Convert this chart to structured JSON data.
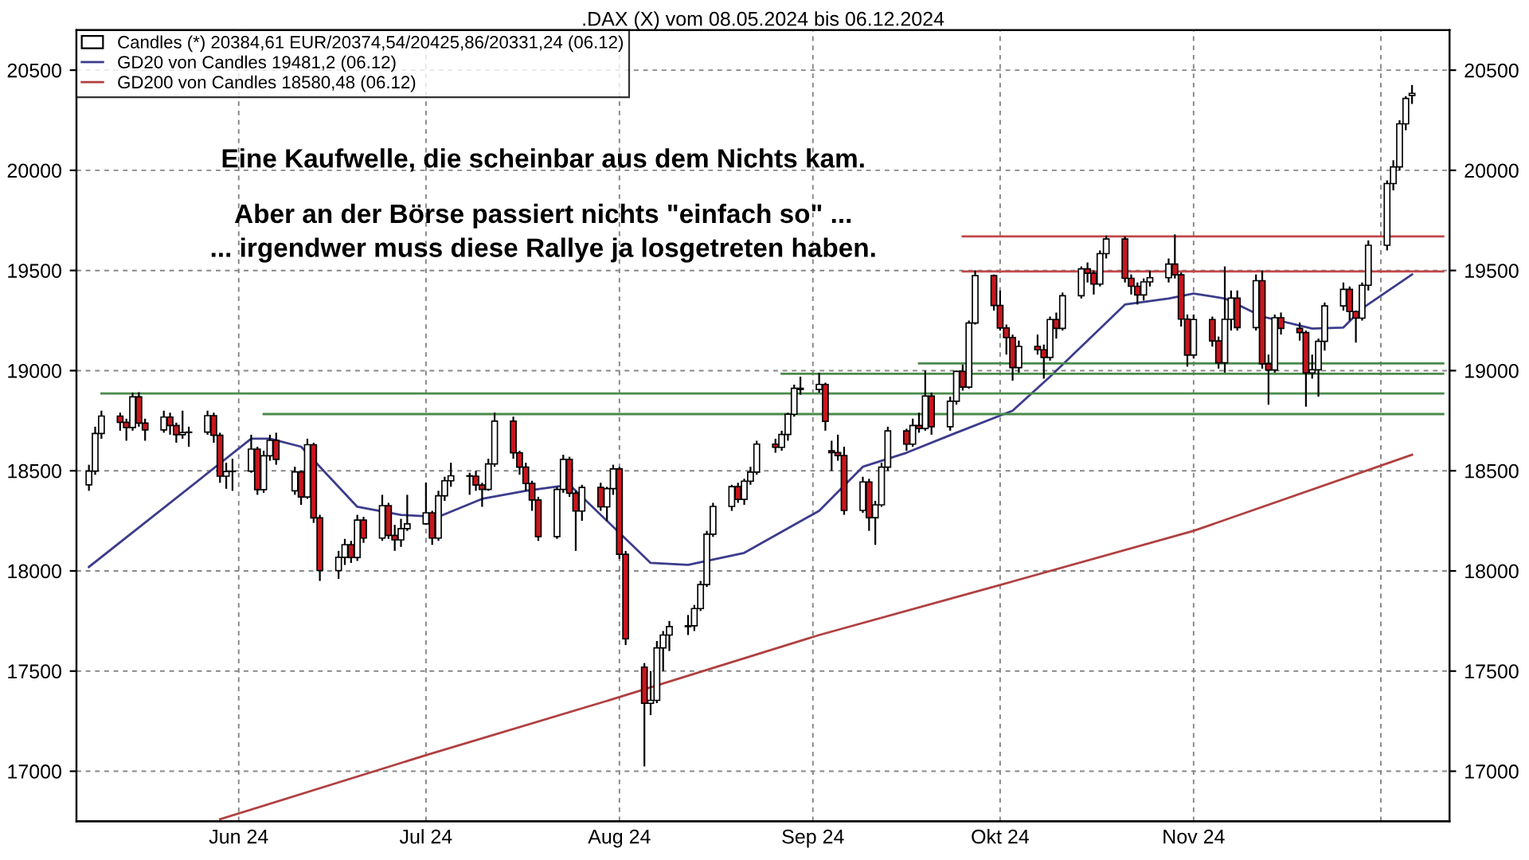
{
  "chart_data": {
    "type": "candlestick",
    "title": ".DAX (X) vom 08.05.2024 bis 06.12.2024",
    "annotations": [
      "Eine Kaufwelle, die scheinbar aus dem Nichts kam.",
      "Aber an der Börse passiert nichts \"einfach so\" ...",
      "... irgendwer muss diese Rallye ja losgetreten haben."
    ],
    "xlim": [
      "2024-05-06",
      "2024-12-12"
    ],
    "xticks": [
      {
        "value": "2024-06-01",
        "label": "Jun 24"
      },
      {
        "value": "2024-07-01",
        "label": "Jul 24"
      },
      {
        "value": "2024-08-01",
        "label": "Aug 24"
      },
      {
        "value": "2024-09-01",
        "label": "Sep 24"
      },
      {
        "value": "2024-10-01",
        "label": "Okt 24"
      },
      {
        "value": "2024-11-01",
        "label": "Nov 24"
      },
      {
        "value": "2024-12-01",
        "label": null
      }
    ],
    "ylim": [
      16750,
      20700
    ],
    "yticks": [
      17000,
      17500,
      18000,
      18500,
      19000,
      19500,
      20000,
      20500
    ],
    "y2lim": [
      16750,
      20700
    ],
    "y2ticks": [
      17000,
      17500,
      18000,
      18500,
      19000,
      19500,
      20000,
      20500
    ],
    "grid": true,
    "legend": "top left",
    "series": [
      {
        "name": "Candles (*) 20384,61 EUR/20374,54/20425,86/20331,24 (06.12)",
        "colors": [
          "#ffffff",
          "#ffffff",
          "#ffffff",
          "#c8161d",
          "#c8161d",
          "#ffffff",
          "#c8161d",
          "#c8161d",
          "#ffffff",
          "#c8161d",
          "#c8161d",
          "#ffffff",
          "#ffffff",
          "#ffffff",
          "#c8161d",
          "#c8161d",
          "#ffffff",
          "#ffffff",
          "#ffffff",
          "#c8161d",
          "#ffffff",
          "#ffffff",
          "#c8161d",
          "#ffffff",
          "#c8161d",
          "#ffffff",
          "#c8161d",
          "#c8161d",
          "#ffffff",
          "#ffffff",
          "#c8161d",
          "#ffffff",
          "#c8161d",
          "#ffffff",
          "#c8161d",
          "#c8161d",
          "#ffffff",
          "#ffffff",
          "#ffffff",
          "#c8161d",
          "#ffffff",
          "#ffffff",
          "#ffffff",
          "#c8161d",
          "#c8161d",
          "#c8161d",
          "#ffffff",
          "#ffffff",
          "#c8161d",
          "#c8161d",
          "#c8161d",
          "#c8161d",
          "#c8161d",
          "#ffffff",
          "#ffffff",
          "#c8161d",
          "#c8161d",
          "#ffffff",
          "#c8161d",
          "#ffffff",
          "#ffffff",
          "#c8161d",
          "#c8161d",
          "#c8161d",
          "#ffffff",
          "#ffffff",
          "#ffffff",
          "#ffffff",
          "#ffffff",
          "#ffffff",
          "#ffffff",
          "#ffffff",
          "#ffffff",
          "#ffffff",
          "#c8161d",
          "#ffffff",
          "#ffffff",
          "#ffffff",
          "#c8161d",
          "#ffffff",
          "#ffffff",
          "#ffffff",
          "#c8161d",
          "#ffffff",
          "#c8161d",
          "#c8161d",
          "#c8161d",
          "#c8161d",
          "#ffffff",
          "#c8161d",
          "#ffffff",
          "#ffffff",
          "#ffffff",
          "#c8161d",
          "#ffffff",
          "#c8161d",
          "#ffffff",
          "#c8161d",
          "#ffffff",
          "#ffffff",
          "#c8161d",
          "#ffffff",
          "#ffffff",
          "#c8161d",
          "#c8161d",
          "#c8161d",
          "#c8161d",
          "#ffffff",
          "#c8161d",
          "#c8161d",
          "#ffffff",
          "#c8161d",
          "#ffffff",
          "#ffffff",
          "#c8161d",
          "#c8161d",
          "#ffffff",
          "#ffffff",
          "#c8161d",
          "#c8161d",
          "#c8161d",
          "#ffffff",
          "#ffffff",
          "#ffffff",
          "#c8161d",
          "#c8161d",
          "#c8161d",
          "#ffffff",
          "#c8161d",
          "#c8161d",
          "#ffffff",
          "#ffffff",
          "#c8161d",
          "#ffffff",
          "#c8161d",
          "#c8161d",
          "#ffffff",
          "#c8161d",
          "#c8161d",
          "#c8161d",
          "#ffffff",
          "#ffffff",
          "#ffffff",
          "#ffffff",
          "#c8161d",
          "#c8161d",
          "#ffffff",
          "#ffffff",
          "#ffffff",
          "#ffffff",
          "#ffffff",
          "#ffffff",
          "#ffffff"
        ],
        "x": [
          "2024-05-08",
          "2024-05-09",
          "2024-05-10",
          "2024-05-13",
          "2024-05-14",
          "2024-05-15",
          "2024-05-16",
          "2024-05-17",
          "2024-05-20",
          "2024-05-21",
          "2024-05-22",
          "2024-05-23",
          "2024-05-24",
          "2024-05-27",
          "2024-05-28",
          "2024-05-29",
          "2024-05-30",
          "2024-05-31",
          "2024-06-03",
          "2024-06-04",
          "2024-06-05",
          "2024-06-06",
          "2024-06-07",
          "2024-06-10",
          "2024-06-11",
          "2024-06-12",
          "2024-06-13",
          "2024-06-14",
          "2024-06-17",
          "2024-06-18",
          "2024-06-19",
          "2024-06-20",
          "2024-06-21",
          "2024-06-24",
          "2024-06-25",
          "2024-06-26",
          "2024-06-27",
          "2024-06-28",
          "2024-07-01",
          "2024-07-02",
          "2024-07-03",
          "2024-07-04",
          "2024-07-05",
          "2024-07-08",
          "2024-07-09",
          "2024-07-10",
          "2024-07-11",
          "2024-07-12",
          "2024-07-15",
          "2024-07-16",
          "2024-07-17",
          "2024-07-18",
          "2024-07-19",
          "2024-07-22",
          "2024-07-23",
          "2024-07-24",
          "2024-07-25",
          "2024-07-26",
          "2024-07-29",
          "2024-07-30",
          "2024-07-31",
          "2024-08-01",
          "2024-08-02",
          "2024-08-05",
          "2024-08-06",
          "2024-08-07",
          "2024-08-08",
          "2024-08-09",
          "2024-08-12",
          "2024-08-13",
          "2024-08-14",
          "2024-08-15",
          "2024-08-16",
          "2024-08-19",
          "2024-08-20",
          "2024-08-21",
          "2024-08-22",
          "2024-08-23",
          "2024-08-26",
          "2024-08-27",
          "2024-08-28",
          "2024-08-29",
          "2024-08-30",
          "2024-09-02",
          "2024-09-03",
          "2024-09-04",
          "2024-09-05",
          "2024-09-06",
          "2024-09-09",
          "2024-09-10",
          "2024-09-11",
          "2024-09-12",
          "2024-09-13",
          "2024-09-16",
          "2024-09-17",
          "2024-09-18",
          "2024-09-19",
          "2024-09-20",
          "2024-09-23",
          "2024-09-24",
          "2024-09-25",
          "2024-09-26",
          "2024-09-27",
          "2024-09-30",
          "2024-10-01",
          "2024-10-02",
          "2024-10-03",
          "2024-10-04",
          "2024-10-07",
          "2024-10-08",
          "2024-10-09",
          "2024-10-10",
          "2024-10-11",
          "2024-10-14",
          "2024-10-15",
          "2024-10-16",
          "2024-10-17",
          "2024-10-18",
          "2024-10-21",
          "2024-10-22",
          "2024-10-23",
          "2024-10-24",
          "2024-10-25",
          "2024-10-28",
          "2024-10-29",
          "2024-10-30",
          "2024-10-31",
          "2024-11-01",
          "2024-11-04",
          "2024-11-05",
          "2024-11-06",
          "2024-11-07",
          "2024-11-08",
          "2024-11-11",
          "2024-11-12",
          "2024-11-13",
          "2024-11-14",
          "2024-11-15",
          "2024-11-18",
          "2024-11-19",
          "2024-11-20",
          "2024-11-21",
          "2024-11-22",
          "2024-11-25",
          "2024-11-26",
          "2024-11-27",
          "2024-11-28",
          "2024-11-29",
          "2024-12-02",
          "2024-12-03",
          "2024-12-04",
          "2024-12-05",
          "2024-12-06"
        ],
        "ohlc": [
          [
            18430,
            18530,
            18400,
            18498
          ],
          [
            18498,
            18720,
            18480,
            18686
          ],
          [
            18686,
            18800,
            18660,
            18773
          ],
          [
            18773,
            18790,
            18700,
            18742
          ],
          [
            18742,
            18760,
            18650,
            18716
          ],
          [
            18716,
            18890,
            18700,
            18869
          ],
          [
            18869,
            18892,
            18720,
            18738
          ],
          [
            18738,
            18760,
            18650,
            18704
          ],
          [
            18704,
            18800,
            18690,
            18768
          ],
          [
            18768,
            18790,
            18680,
            18726
          ],
          [
            18726,
            18740,
            18640,
            18680
          ],
          [
            18680,
            18800,
            18660,
            18691
          ],
          [
            18691,
            18720,
            18620,
            18693
          ],
          [
            18693,
            18800,
            18680,
            18775
          ],
          [
            18775,
            18790,
            18640,
            18677
          ],
          [
            18677,
            18690,
            18440,
            18473
          ],
          [
            18473,
            18540,
            18410,
            18496
          ],
          [
            18496,
            18560,
            18400,
            18498
          ],
          [
            18498,
            18680,
            18490,
            18608
          ],
          [
            18608,
            18620,
            18380,
            18406
          ],
          [
            18406,
            18600,
            18390,
            18575
          ],
          [
            18575,
            18680,
            18550,
            18652
          ],
          [
            18652,
            18690,
            18530,
            18557
          ],
          [
            18400,
            18520,
            18380,
            18494
          ],
          [
            18494,
            18500,
            18330,
            18369
          ],
          [
            18369,
            18660,
            18360,
            18630
          ],
          [
            18630,
            18640,
            18240,
            18265
          ],
          [
            18265,
            18280,
            17950,
            18002
          ],
          [
            18002,
            18100,
            17960,
            18068
          ],
          [
            18068,
            18160,
            18030,
            18131
          ],
          [
            18131,
            18150,
            18040,
            18067
          ],
          [
            18067,
            18280,
            18050,
            18254
          ],
          [
            18254,
            18270,
            18140,
            18164
          ],
          [
            18164,
            18380,
            18150,
            18326
          ],
          [
            18326,
            18340,
            18160,
            18177
          ],
          [
            18177,
            18230,
            18100,
            18155
          ],
          [
            18155,
            18260,
            18120,
            18211
          ],
          [
            18211,
            18380,
            18200,
            18235
          ],
          [
            18235,
            18440,
            18230,
            18290
          ],
          [
            18290,
            18300,
            18130,
            18164
          ],
          [
            18164,
            18400,
            18150,
            18375
          ],
          [
            18375,
            18470,
            18350,
            18450
          ],
          [
            18450,
            18540,
            18420,
            18475
          ],
          [
            18475,
            18490,
            18380,
            18473
          ],
          [
            18473,
            18500,
            18400,
            18429
          ],
          [
            18429,
            18440,
            18320,
            18407
          ],
          [
            18407,
            18560,
            18400,
            18534
          ],
          [
            18534,
            18790,
            18520,
            18748
          ],
          [
            18748,
            18770,
            18560,
            18590
          ],
          [
            18590,
            18600,
            18480,
            18518
          ],
          [
            18518,
            18540,
            18400,
            18437
          ],
          [
            18437,
            18450,
            18300,
            18354
          ],
          [
            18354,
            18370,
            18150,
            18171
          ],
          [
            18171,
            18420,
            18160,
            18407
          ],
          [
            18407,
            18580,
            18390,
            18557
          ],
          [
            18557,
            18570,
            18370,
            18388
          ],
          [
            18388,
            18400,
            18100,
            18299
          ],
          [
            18299,
            18430,
            18250,
            18417
          ],
          [
            18417,
            18440,
            18300,
            18320
          ],
          [
            18320,
            18420,
            18250,
            18411
          ],
          [
            18411,
            18530,
            18380,
            18509
          ],
          [
            18509,
            18520,
            18060,
            18083
          ],
          [
            18083,
            18100,
            17630,
            17661
          ],
          [
            17520,
            17540,
            17024,
            17339
          ],
          [
            17339,
            17500,
            17280,
            17354
          ],
          [
            17354,
            17650,
            17340,
            17616
          ],
          [
            17616,
            17700,
            17500,
            17680
          ],
          [
            17680,
            17750,
            17600,
            17722
          ],
          [
            17722,
            17780,
            17680,
            17726
          ],
          [
            17726,
            17830,
            17700,
            17812
          ],
          [
            17812,
            17950,
            17800,
            17932
          ],
          [
            17932,
            18200,
            17920,
            18183
          ],
          [
            18183,
            18340,
            18170,
            18322
          ],
          [
            18322,
            18430,
            18300,
            18421
          ],
          [
            18421,
            18440,
            18340,
            18357
          ],
          [
            18357,
            18460,
            18330,
            18448
          ],
          [
            18448,
            18520,
            18430,
            18493
          ],
          [
            18493,
            18650,
            18480,
            18633
          ],
          [
            18633,
            18660,
            18590,
            18617
          ],
          [
            18617,
            18700,
            18600,
            18681
          ],
          [
            18681,
            18790,
            18650,
            18782
          ],
          [
            18782,
            18930,
            18770,
            18912
          ],
          [
            18912,
            18970,
            18880,
            18906
          ],
          [
            18906,
            18990,
            18890,
            18931
          ],
          [
            18931,
            18940,
            18700,
            18747
          ],
          [
            18600,
            18650,
            18500,
            18591
          ],
          [
            18591,
            18680,
            18550,
            18576
          ],
          [
            18576,
            18620,
            18280,
            18302
          ],
          [
            18302,
            18470,
            18290,
            18444
          ],
          [
            18444,
            18460,
            18200,
            18266
          ],
          [
            18266,
            18350,
            18130,
            18330
          ],
          [
            18330,
            18540,
            18320,
            18518
          ],
          [
            18518,
            18720,
            18500,
            18699
          ],
          [
            18699,
            18710,
            18600,
            18633
          ],
          [
            18633,
            18760,
            18620,
            18726
          ],
          [
            18726,
            18790,
            18690,
            18711
          ],
          [
            18711,
            19000,
            18700,
            18873
          ],
          [
            18873,
            18890,
            18680,
            18720
          ],
          [
            18720,
            18870,
            18700,
            18847
          ],
          [
            18847,
            19000,
            18830,
            18996
          ],
          [
            18996,
            19030,
            18900,
            18918
          ],
          [
            18918,
            19250,
            18910,
            19238
          ],
          [
            19238,
            19500,
            19230,
            19474
          ],
          [
            19474,
            19480,
            19300,
            19325
          ],
          [
            19325,
            19400,
            19200,
            19213
          ],
          [
            19213,
            19230,
            19080,
            19165
          ],
          [
            19165,
            19180,
            18950,
            19015
          ],
          [
            19015,
            19150,
            18990,
            19121
          ],
          [
            19121,
            19180,
            19080,
            19104
          ],
          [
            19104,
            19130,
            18960,
            19066
          ],
          [
            19066,
            19270,
            19050,
            19255
          ],
          [
            19255,
            19290,
            19160,
            19211
          ],
          [
            19211,
            19390,
            19200,
            19374
          ],
          [
            19374,
            19520,
            19360,
            19508
          ],
          [
            19508,
            19540,
            19440,
            19486
          ],
          [
            19486,
            19500,
            19380,
            19432
          ],
          [
            19432,
            19600,
            19420,
            19584
          ],
          [
            19584,
            19674,
            19560,
            19657
          ],
          [
            19657,
            19670,
            19440,
            19461
          ],
          [
            19461,
            19480,
            19380,
            19421
          ],
          [
            19421,
            19440,
            19330,
            19378
          ],
          [
            19378,
            19460,
            19350,
            19443
          ],
          [
            19443,
            19500,
            19420,
            19464
          ],
          [
            19464,
            19560,
            19440,
            19532
          ],
          [
            19532,
            19680,
            19460,
            19478
          ],
          [
            19478,
            19490,
            19220,
            19257
          ],
          [
            19257,
            19280,
            19020,
            19078
          ],
          [
            19078,
            19280,
            19060,
            19255
          ],
          [
            19255,
            19270,
            19120,
            19148
          ],
          [
            19148,
            19170,
            19010,
            19039
          ],
          [
            19039,
            19520,
            18990,
            19256
          ],
          [
            19256,
            19400,
            19200,
            19362
          ],
          [
            19362,
            19400,
            19200,
            19215
          ],
          [
            19215,
            19480,
            19200,
            19449
          ],
          [
            19449,
            19500,
            19010,
            19034
          ],
          [
            19034,
            19080,
            18830,
            19003
          ],
          [
            19003,
            19280,
            18990,
            19264
          ],
          [
            19264,
            19290,
            19180,
            19211
          ],
          [
            19211,
            19240,
            19150,
            19190
          ],
          [
            19190,
            19200,
            18820,
            18988
          ],
          [
            18988,
            19080,
            18960,
            19004
          ],
          [
            19004,
            19160,
            18870,
            19146
          ],
          [
            19146,
            19340,
            19100,
            19323
          ],
          [
            19323,
            19440,
            19300,
            19406
          ],
          [
            19406,
            19420,
            19250,
            19295
          ],
          [
            19295,
            19300,
            19140,
            19262
          ],
          [
            19262,
            19440,
            19250,
            19426
          ],
          [
            19426,
            19650,
            19400,
            19626
          ],
          [
            19626,
            19950,
            19600,
            19934
          ],
          [
            19934,
            20050,
            19900,
            20017
          ],
          [
            20017,
            20250,
            20000,
            20232
          ],
          [
            20232,
            20370,
            20200,
            20359
          ],
          [
            20374,
            20426,
            20331,
            20384
          ]
        ]
      },
      {
        "name": "GD20 von Candles 19481,2 (06.12)",
        "type": "line",
        "color": "#3c3c8c",
        "x": [
          "2024-05-08",
          "2024-06-03",
          "2024-06-06",
          "2024-06-11",
          "2024-06-20",
          "2024-06-27",
          "2024-07-03",
          "2024-07-10",
          "2024-07-17",
          "2024-07-24",
          "2024-08-06",
          "2024-08-12",
          "2024-08-21",
          "2024-09-02",
          "2024-09-09",
          "2024-09-16",
          "2024-09-24",
          "2024-10-03",
          "2024-10-09",
          "2024-10-16",
          "2024-10-21",
          "2024-10-28",
          "2024-11-01",
          "2024-11-06",
          "2024-11-12",
          "2024-11-20",
          "2024-11-25",
          "2024-11-28",
          "2024-12-06"
        ],
        "values": [
          18020,
          18660,
          18660,
          18620,
          18320,
          18280,
          18270,
          18360,
          18400,
          18430,
          18040,
          18030,
          18090,
          18300,
          18520,
          18590,
          18690,
          18800,
          18970,
          19180,
          19330,
          19360,
          19385,
          19360,
          19270,
          19210,
          19215,
          19310,
          19480
        ]
      },
      {
        "name": "GD200 von Candles 18580,48 (06.12)",
        "type": "line",
        "color": "#b04040",
        "x": [
          "2024-05-29",
          "2024-07-01",
          "2024-08-01",
          "2024-09-02",
          "2024-10-01",
          "2024-11-01",
          "2024-12-06"
        ],
        "values": [
          16760,
          17080,
          17370,
          17680,
          17930,
          18200,
          18580
        ]
      },
      {
        "type": "line",
        "color": "#c04848",
        "x": [
          "2024-09-25",
          "2024-12-11"
        ],
        "values": [
          19670,
          19670
        ]
      },
      {
        "type": "line",
        "color": "#c04848",
        "x": [
          "2024-09-25",
          "2024-12-11"
        ],
        "values": [
          19495,
          19495
        ]
      },
      {
        "type": "line",
        "color": "#4a8a4a",
        "x": [
          "2024-09-18",
          "2024-12-11"
        ],
        "values": [
          19036,
          19036
        ]
      },
      {
        "type": "line",
        "color": "#4a8a4a",
        "x": [
          "2024-08-27",
          "2024-12-11"
        ],
        "values": [
          18984,
          18984
        ]
      },
      {
        "type": "line",
        "color": "#4a8a4a",
        "x": [
          "2024-05-10",
          "2024-12-11"
        ],
        "values": [
          18886,
          18886
        ]
      },
      {
        "type": "line",
        "color": "#4a8a4a",
        "x": [
          "2024-06-05",
          "2024-12-11"
        ],
        "values": [
          18783,
          18783
        ]
      }
    ]
  }
}
